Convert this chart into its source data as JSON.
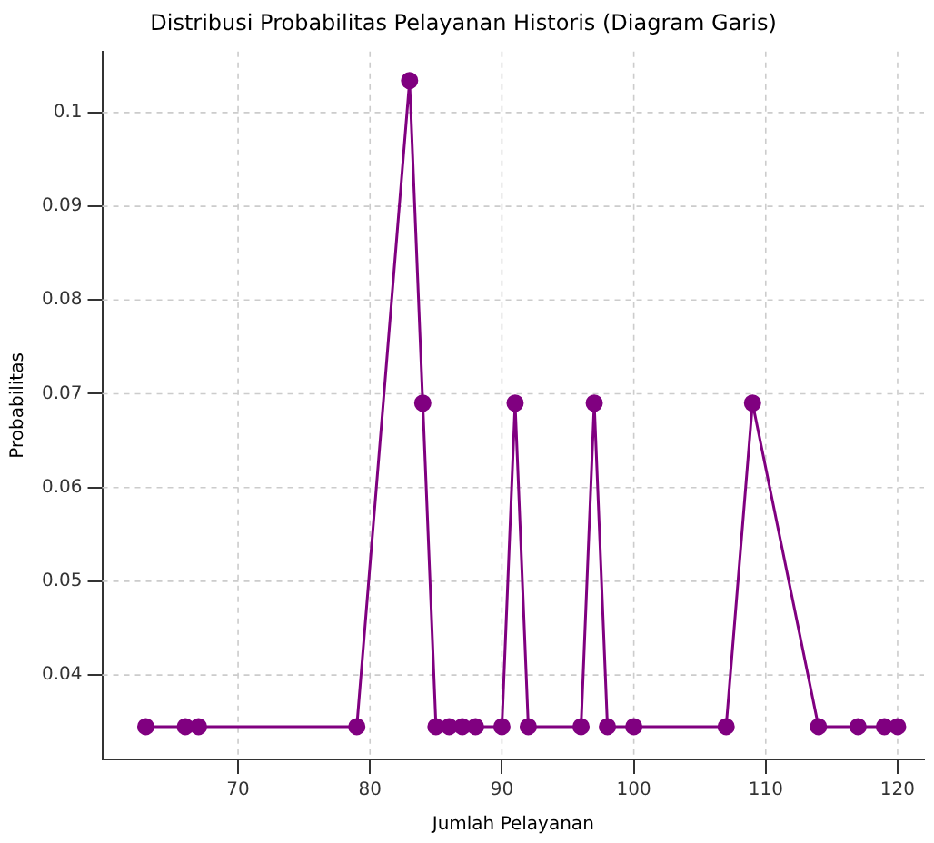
{
  "chart_data": {
    "type": "line",
    "title": "Distribusi Probabilitas Pelayanan Historis (Diagram Garis)",
    "xlabel": "Jumlah Pelayanan",
    "ylabel": "Probabilitas",
    "x": [
      63,
      66,
      67,
      79,
      83,
      84,
      85,
      86,
      87,
      88,
      90,
      91,
      92,
      96,
      97,
      98,
      100,
      107,
      109,
      114,
      117,
      119,
      120
    ],
    "series": [
      {
        "color": "#800080",
        "values": [
          0.0345,
          0.0345,
          0.0345,
          0.0345,
          0.1034,
          0.069,
          0.0345,
          0.0345,
          0.0345,
          0.0345,
          0.0345,
          0.069,
          0.0345,
          0.0345,
          0.069,
          0.0345,
          0.0345,
          0.0345,
          0.069,
          0.0345,
          0.0345,
          0.0345,
          0.0345
        ]
      }
    ],
    "xlim": [
      59.7,
      122
    ],
    "xticks": [
      70,
      80,
      90,
      100,
      110,
      120
    ],
    "ylim": [
      0.031,
      0.1065
    ],
    "yticks": [
      0.04,
      0.05,
      0.06,
      0.07,
      0.08,
      0.09,
      0.1
    ],
    "grid": true,
    "legend": false,
    "marker": "circle",
    "line_style": "solid"
  }
}
